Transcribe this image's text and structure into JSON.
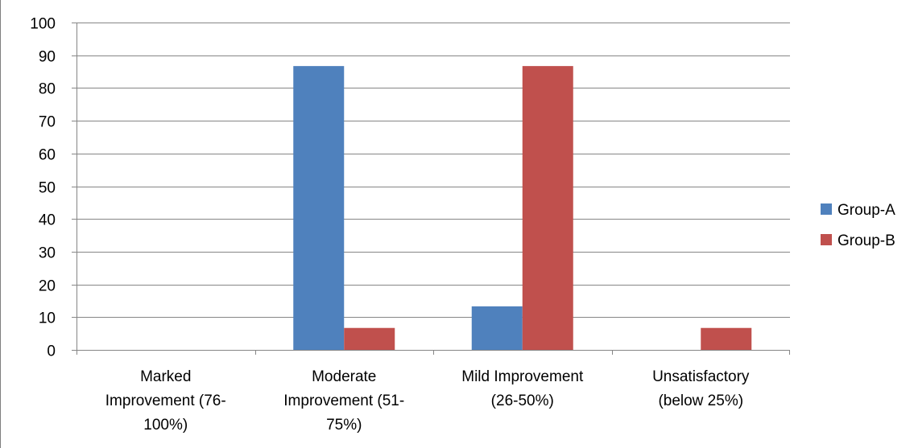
{
  "chart_data": {
    "type": "bar",
    "categories": [
      [
        "Marked",
        "Improvement (76-",
        "100%)"
      ],
      [
        "Moderate",
        "Improvement (51-",
        "75%)"
      ],
      [
        "Mild Improvement",
        "(26-50%)"
      ],
      [
        "Unsatisfactory",
        "(below 25%)"
      ]
    ],
    "series": [
      {
        "name": "Group-A",
        "color": "#4F81BD",
        "values": [
          0,
          86.7,
          13.3,
          0
        ]
      },
      {
        "name": "Group-B",
        "color": "#C0504D",
        "values": [
          0,
          6.7,
          86.7,
          6.7
        ]
      }
    ],
    "ylim": [
      0,
      100
    ],
    "yticks": [
      "0",
      "10",
      "20",
      "30",
      "40",
      "50",
      "60",
      "70",
      "80",
      "90",
      "100"
    ],
    "ytick_values": [
      0,
      10,
      20,
      30,
      40,
      50,
      60,
      70,
      80,
      90,
      100
    ],
    "grid": true,
    "legend_position": "right"
  }
}
